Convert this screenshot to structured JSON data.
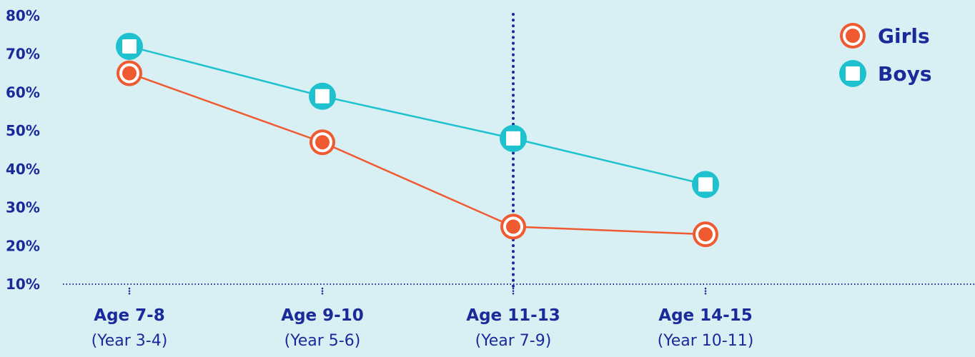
{
  "chart_data": {
    "type": "line",
    "categories": [
      "Age 7-8",
      "Age 9-10",
      "Age 11-13",
      "Age 14-15"
    ],
    "category_sublabels": [
      "(Year 3-4)",
      "(Year 5-6)",
      "(Year 7-9)",
      "(Year 10-11)"
    ],
    "series": [
      {
        "name": "Girls",
        "values": [
          65,
          47,
          25,
          23
        ],
        "color": "#f05a30",
        "marker": "circle"
      },
      {
        "name": "Boys",
        "values": [
          72,
          59,
          48,
          36
        ],
        "color": "#1ec2cf",
        "marker": "square"
      }
    ],
    "yticks": [
      "10%",
      "20%",
      "30%",
      "40%",
      "50%",
      "60%",
      "70%",
      "80%"
    ],
    "ylim": [
      10,
      80
    ],
    "legend_position": "top-right",
    "axis_color": "#1a2a9a",
    "reference_line_category": "Age 11-13"
  }
}
